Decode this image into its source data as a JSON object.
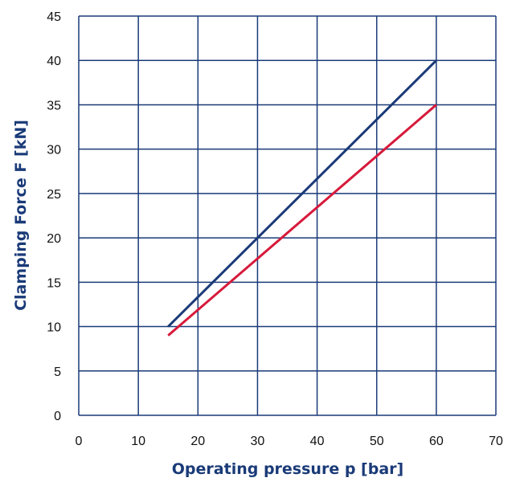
{
  "chart_data": {
    "type": "line",
    "title": "",
    "xlabel": "Operating pressure p [bar]",
    "ylabel": "Clamping Force F [kN]",
    "xlim": [
      0,
      70
    ],
    "ylim": [
      0,
      45
    ],
    "xticks": [
      0,
      10,
      20,
      30,
      40,
      50,
      60,
      70
    ],
    "yticks": [
      0,
      5,
      10,
      15,
      20,
      25,
      30,
      35,
      40,
      45
    ],
    "grid": true,
    "series": [
      {
        "x": [
          15,
          60
        ],
        "y": [
          10,
          40
        ],
        "color": "#1a3a78"
      },
      {
        "x": [
          15,
          60
        ],
        "y": [
          9,
          35
        ],
        "color": "#d7193a"
      }
    ]
  },
  "colors": {
    "grid": "#1a3a78",
    "axis_title": "#1a3a78"
  }
}
